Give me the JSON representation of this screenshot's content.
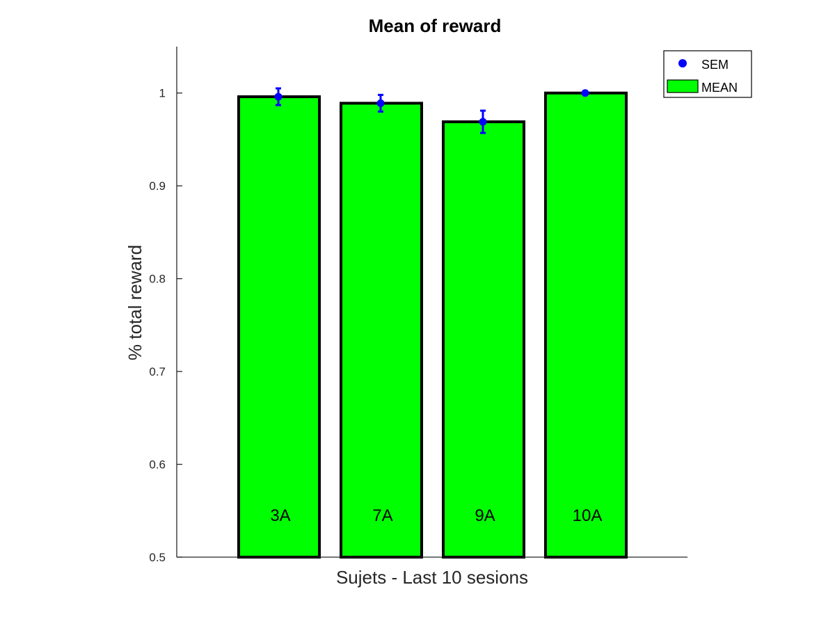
{
  "chart_data": {
    "type": "bar",
    "title": "Mean of reward",
    "xlabel": "Sujets - Last 10 sesions",
    "ylabel": "% total reward",
    "ylim": [
      0.5,
      1.05
    ],
    "yticks": [
      0.5,
      0.6,
      0.7,
      0.8,
      0.9,
      1
    ],
    "ytick_labels": [
      "0.5",
      "0.6",
      "0.7",
      "0.8",
      "0.9",
      "1"
    ],
    "categories": [
      "3A",
      "7A",
      "9A",
      "10A"
    ],
    "series": [
      {
        "name": "MEAN",
        "values": [
          0.996,
          0.989,
          0.969,
          1.0
        ],
        "color": "#00ff00"
      },
      {
        "name": "SEM",
        "values": [
          0.996,
          0.989,
          0.969,
          1.0
        ],
        "errors": [
          0.009,
          0.009,
          0.012,
          0.0
        ],
        "color": "#0000ff"
      }
    ],
    "legend": {
      "position": "top-right",
      "entries": [
        {
          "label": "SEM",
          "marker": "dot",
          "color": "#0000ff"
        },
        {
          "label": "MEAN",
          "marker": "box",
          "color": "#00ff00"
        }
      ]
    },
    "grid": false
  }
}
